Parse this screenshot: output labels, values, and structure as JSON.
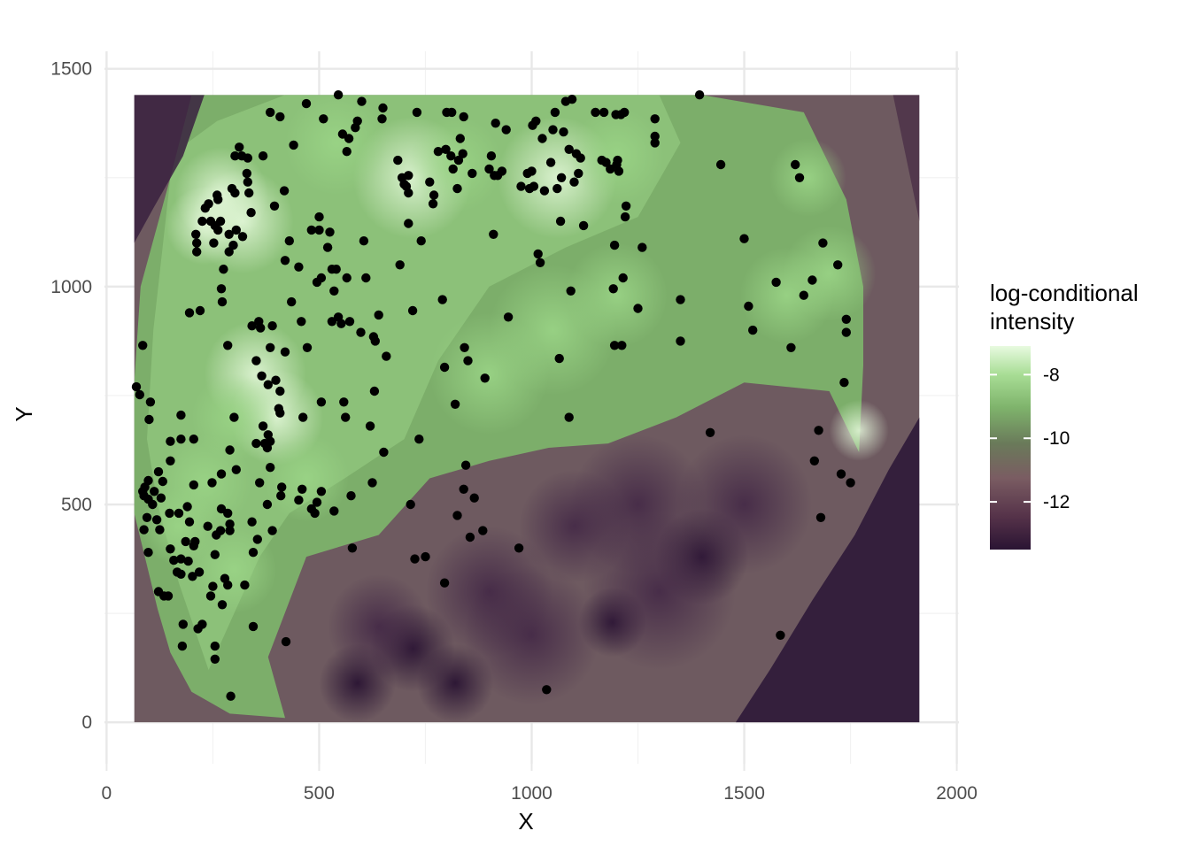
{
  "chart_data": {
    "type": "heatmap",
    "title": "",
    "xlabel": "X",
    "ylabel": "Y",
    "xlim": [
      -5,
      2005
    ],
    "ylim": [
      -95,
      1540
    ],
    "x_ticks": [
      0,
      500,
      1000,
      1500,
      2000
    ],
    "y_ticks": [
      0,
      500,
      1000,
      1500
    ],
    "x_tick_labels": [
      "0",
      "500",
      "1000",
      "1500",
      "2000"
    ],
    "y_tick_labels": [
      "0",
      "500",
      "1000",
      "1500"
    ],
    "grid": true,
    "raster_extent": {
      "x": [
        65,
        1912
      ],
      "y": [
        0,
        1440
      ]
    },
    "legend": {
      "title_line1": "log-conditional",
      "title_line2": "intensity",
      "placement": "right",
      "range": [
        -13.5,
        -7.1
      ],
      "ticks": [
        -8,
        -10,
        -12
      ],
      "tick_labels": [
        "-8",
        "-10",
        "-12"
      ],
      "colors": [
        "#2a1433",
        "#553249",
        "#7a5c62",
        "#6a7a5a",
        "#7fb46c",
        "#a8dd95",
        "#e8fae0"
      ]
    },
    "point_color": "#000000",
    "points": [
      [
        70,
        770
      ],
      [
        78,
        752
      ],
      [
        85,
        865
      ],
      [
        103,
        735
      ],
      [
        100,
        695
      ],
      [
        98,
        555
      ],
      [
        90,
        540
      ],
      [
        85,
        530
      ],
      [
        88,
        520
      ],
      [
        112,
        530
      ],
      [
        98,
        512
      ],
      [
        108,
        500
      ],
      [
        132,
        553
      ],
      [
        122,
        575
      ],
      [
        128,
        515
      ],
      [
        95,
        470
      ],
      [
        88,
        442
      ],
      [
        118,
        465
      ],
      [
        125,
        442
      ],
      [
        98,
        390
      ],
      [
        122,
        300
      ],
      [
        135,
        290
      ],
      [
        145,
        290
      ],
      [
        150,
        645
      ],
      [
        150,
        600
      ],
      [
        148,
        480
      ],
      [
        150,
        398
      ],
      [
        158,
        372
      ],
      [
        166,
        345
      ],
      [
        170,
        480
      ],
      [
        175,
        650
      ],
      [
        175,
        705
      ],
      [
        175,
        375
      ],
      [
        175,
        340
      ],
      [
        180,
        225
      ],
      [
        178,
        175
      ],
      [
        186,
        415
      ],
      [
        190,
        495
      ],
      [
        195,
        460
      ],
      [
        192,
        370
      ],
      [
        202,
        335
      ],
      [
        205,
        545
      ],
      [
        205,
        405
      ],
      [
        208,
        415
      ],
      [
        218,
        345
      ],
      [
        195,
        940
      ],
      [
        205,
        650
      ],
      [
        210,
        1120
      ],
      [
        212,
        1080
      ],
      [
        212,
        1100
      ],
      [
        225,
        1150
      ],
      [
        220,
        945
      ],
      [
        215,
        215
      ],
      [
        225,
        225
      ],
      [
        232,
        1180
      ],
      [
        240,
        1190
      ],
      [
        245,
        1150
      ],
      [
        238,
        450
      ],
      [
        245,
        290
      ],
      [
        250,
        312
      ],
      [
        248,
        550
      ],
      [
        255,
        385
      ],
      [
        252,
        1100
      ],
      [
        255,
        1140
      ],
      [
        258,
        430
      ],
      [
        262,
        1200
      ],
      [
        262,
        1130
      ],
      [
        268,
        1150
      ],
      [
        255,
        175
      ],
      [
        255,
        145
      ],
      [
        260,
        1210
      ],
      [
        270,
        995
      ],
      [
        272,
        965
      ],
      [
        270,
        490
      ],
      [
        270,
        570
      ],
      [
        275,
        1040
      ],
      [
        278,
        330
      ],
      [
        268,
        440
      ],
      [
        272,
        270
      ],
      [
        285,
        315
      ],
      [
        285,
        480
      ],
      [
        288,
        1080
      ],
      [
        288,
        1120
      ],
      [
        290,
        440
      ],
      [
        290,
        625
      ],
      [
        285,
        865
      ],
      [
        290,
        455
      ],
      [
        292,
        60
      ],
      [
        295,
        1225
      ],
      [
        300,
        700
      ],
      [
        305,
        580
      ],
      [
        305,
        1130
      ],
      [
        302,
        1300
      ],
      [
        302,
        1215
      ],
      [
        298,
        1095
      ],
      [
        312,
        1320
      ],
      [
        318,
        1300
      ],
      [
        320,
        1115
      ],
      [
        325,
        315
      ],
      [
        330,
        1260
      ],
      [
        332,
        1240
      ],
      [
        332,
        1295
      ],
      [
        335,
        1215
      ],
      [
        340,
        1170
      ],
      [
        342,
        910
      ],
      [
        342,
        460
      ],
      [
        345,
        390
      ],
      [
        345,
        220
      ],
      [
        352,
        830
      ],
      [
        352,
        640
      ],
      [
        355,
        420
      ],
      [
        358,
        920
      ],
      [
        360,
        550
      ],
      [
        362,
        905
      ],
      [
        365,
        795
      ],
      [
        368,
        680
      ],
      [
        368,
        1300
      ],
      [
        372,
        640
      ],
      [
        378,
        630
      ],
      [
        380,
        660
      ],
      [
        385,
        645
      ],
      [
        378,
        500
      ],
      [
        385,
        585
      ],
      [
        380,
        775
      ],
      [
        385,
        1400
      ],
      [
        385,
        860
      ],
      [
        390,
        910
      ],
      [
        390,
        440
      ],
      [
        395,
        1185
      ],
      [
        398,
        785
      ],
      [
        405,
        720
      ],
      [
        408,
        710
      ],
      [
        408,
        1390
      ],
      [
        408,
        760
      ],
      [
        410,
        520
      ],
      [
        412,
        540
      ],
      [
        418,
        1220
      ],
      [
        420,
        850
      ],
      [
        420,
        1060
      ],
      [
        422,
        185
      ],
      [
        430,
        1105
      ],
      [
        435,
        965
      ],
      [
        440,
        1325
      ],
      [
        452,
        510
      ],
      [
        452,
        1045
      ],
      [
        458,
        920
      ],
      [
        460,
        535
      ],
      [
        462,
        700
      ],
      [
        470,
        1420
      ],
      [
        472,
        860
      ],
      [
        482,
        1130
      ],
      [
        482,
        490
      ],
      [
        490,
        480
      ],
      [
        495,
        505
      ],
      [
        495,
        1010
      ],
      [
        500,
        1160
      ],
      [
        500,
        1130
      ],
      [
        505,
        1020
      ],
      [
        505,
        735
      ],
      [
        505,
        530
      ],
      [
        510,
        1385
      ],
      [
        520,
        1090
      ],
      [
        525,
        1125
      ],
      [
        530,
        1040
      ],
      [
        530,
        920
      ],
      [
        535,
        990
      ],
      [
        535,
        485
      ],
      [
        540,
        1040
      ],
      [
        545,
        1440
      ],
      [
        545,
        930
      ],
      [
        552,
        915
      ],
      [
        555,
        1350
      ],
      [
        558,
        735
      ],
      [
        562,
        700
      ],
      [
        565,
        1020
      ],
      [
        565,
        1310
      ],
      [
        570,
        1340
      ],
      [
        572,
        920
      ],
      [
        575,
        520
      ],
      [
        578,
        400
      ],
      [
        585,
        1365
      ],
      [
        590,
        1380
      ],
      [
        598,
        895
      ],
      [
        600,
        1425
      ],
      [
        605,
        1105
      ],
      [
        610,
        1020
      ],
      [
        620,
        680
      ],
      [
        625,
        550
      ],
      [
        628,
        885
      ],
      [
        630,
        760
      ],
      [
        632,
        875
      ],
      [
        640,
        935
      ],
      [
        648,
        1385
      ],
      [
        650,
        1410
      ],
      [
        652,
        620
      ],
      [
        658,
        840
      ],
      [
        685,
        1290
      ],
      [
        690,
        1050
      ],
      [
        695,
        1250
      ],
      [
        700,
        1235
      ],
      [
        705,
        1230
      ],
      [
        710,
        1255
      ],
      [
        710,
        1215
      ],
      [
        710,
        1145
      ],
      [
        715,
        500
      ],
      [
        720,
        945
      ],
      [
        725,
        375
      ],
      [
        730,
        1400
      ],
      [
        735,
        650
      ],
      [
        740,
        1105
      ],
      [
        750,
        380
      ],
      [
        760,
        1240
      ],
      [
        768,
        1190
      ],
      [
        770,
        1210
      ],
      [
        780,
        1310
      ],
      [
        790,
        970
      ],
      [
        795,
        320
      ],
      [
        795,
        815
      ],
      [
        798,
        1315
      ],
      [
        800,
        1400
      ],
      [
        810,
        1300
      ],
      [
        812,
        1400
      ],
      [
        815,
        1270
      ],
      [
        820,
        730
      ],
      [
        825,
        475
      ],
      [
        825,
        1225
      ],
      [
        828,
        1290
      ],
      [
        832,
        1340
      ],
      [
        838,
        1305
      ],
      [
        840,
        1390
      ],
      [
        840,
        535
      ],
      [
        842,
        860
      ],
      [
        845,
        590
      ],
      [
        850,
        830
      ],
      [
        855,
        425
      ],
      [
        860,
        1260
      ],
      [
        865,
        515
      ],
      [
        885,
        440
      ],
      [
        890,
        790
      ],
      [
        900,
        1270
      ],
      [
        905,
        1300
      ],
      [
        910,
        1120
      ],
      [
        912,
        1255
      ],
      [
        915,
        1375
      ],
      [
        920,
        1255
      ],
      [
        930,
        1265
      ],
      [
        940,
        1360
      ],
      [
        945,
        930
      ],
      [
        970,
        400
      ],
      [
        975,
        1230
      ],
      [
        990,
        1260
      ],
      [
        995,
        1225
      ],
      [
        1000,
        1265
      ],
      [
        1002,
        1370
      ],
      [
        1005,
        1230
      ],
      [
        1010,
        1380
      ],
      [
        1015,
        1075
      ],
      [
        1020,
        1055
      ],
      [
        1025,
        1340
      ],
      [
        1030,
        1220
      ],
      [
        1035,
        75
      ],
      [
        1045,
        1285
      ],
      [
        1050,
        1360
      ],
      [
        1055,
        1400
      ],
      [
        1060,
        1225
      ],
      [
        1065,
        835
      ],
      [
        1068,
        1150
      ],
      [
        1070,
        1250
      ],
      [
        1075,
        1355
      ],
      [
        1080,
        1425
      ],
      [
        1088,
        700
      ],
      [
        1088,
        1315
      ],
      [
        1092,
        990
      ],
      [
        1095,
        1430
      ],
      [
        1100,
        1240
      ],
      [
        1105,
        1305
      ],
      [
        1110,
        1260
      ],
      [
        1115,
        1295
      ],
      [
        1122,
        1140
      ],
      [
        1150,
        1400
      ],
      [
        1165,
        1290
      ],
      [
        1170,
        1400
      ],
      [
        1175,
        1285
      ],
      [
        1185,
        1270
      ],
      [
        1192,
        995
      ],
      [
        1195,
        1095
      ],
      [
        1195,
        865
      ],
      [
        1198,
        1395
      ],
      [
        1200,
        1280
      ],
      [
        1202,
        1290
      ],
      [
        1205,
        1265
      ],
      [
        1210,
        1395
      ],
      [
        1212,
        865
      ],
      [
        1215,
        1020
      ],
      [
        1218,
        1400
      ],
      [
        1220,
        1160
      ],
      [
        1222,
        1185
      ],
      [
        1250,
        950
      ],
      [
        1260,
        1090
      ],
      [
        1290,
        1385
      ],
      [
        1290,
        1345
      ],
      [
        1290,
        1330
      ],
      [
        1350,
        970
      ],
      [
        1350,
        875
      ],
      [
        1395,
        1440
      ],
      [
        1420,
        665
      ],
      [
        1445,
        1280
      ],
      [
        1500,
        1110
      ],
      [
        1575,
        1010
      ],
      [
        1585,
        200
      ],
      [
        1610,
        860
      ],
      [
        1620,
        1280
      ],
      [
        1630,
        1250
      ],
      [
        1640,
        980
      ],
      [
        1660,
        1015
      ],
      [
        1665,
        600
      ],
      [
        1675,
        670
      ],
      [
        1680,
        470
      ],
      [
        1685,
        1100
      ],
      [
        1720,
        1050
      ],
      [
        1728,
        570
      ],
      [
        1735,
        780
      ],
      [
        1740,
        925
      ],
      [
        1740,
        895
      ],
      [
        1750,
        550
      ],
      [
        1510,
        955
      ],
      [
        1520,
        900
      ]
    ]
  }
}
